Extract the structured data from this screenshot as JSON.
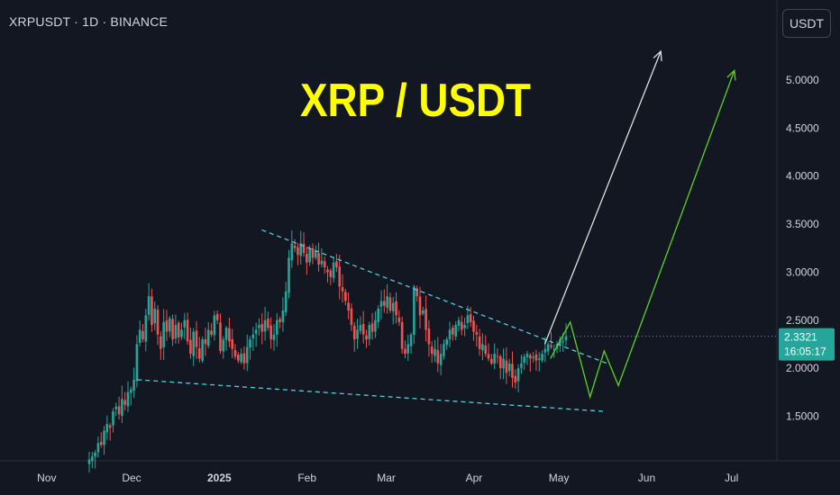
{
  "header": {
    "symbol": "XRPUSDT · 1D · BINANCE",
    "currency_button": "USDT"
  },
  "annotation": {
    "headline": "XRP / USDT",
    "color": "#ffff00"
  },
  "colors": {
    "background": "#131722",
    "up": "#26a69a",
    "down": "#ef5350",
    "trendline": "#4dd0e1",
    "arrow_white": "#e0e0e0",
    "arrow_green": "#5bd41f",
    "price_tag": "#26a69a"
  },
  "chart_data": {
    "type": "candlestick",
    "x_ticks": [
      "Nov",
      "Dec",
      "2025",
      "Feb",
      "Mar",
      "Apr",
      "May",
      "Jun",
      "Jul"
    ],
    "y_ticks": [
      "1.5000",
      "2.0000",
      "2.5000",
      "3.0000",
      "3.5000",
      "4.0000",
      "4.5000",
      "5.0000"
    ],
    "ylim": [
      1.05,
      5.55
    ],
    "last_price": "2.3321",
    "countdown": "16:05:17",
    "closes": [
      1.05,
      1.08,
      1.12,
      1.22,
      1.2,
      1.35,
      1.42,
      1.38,
      1.55,
      1.6,
      1.52,
      1.68,
      1.62,
      1.75,
      1.78,
      1.88,
      2.25,
      2.4,
      2.3,
      2.55,
      2.75,
      2.45,
      2.62,
      2.35,
      2.2,
      2.48,
      2.38,
      2.52,
      2.3,
      2.45,
      2.32,
      2.4,
      2.5,
      2.28,
      2.15,
      2.38,
      2.22,
      2.1,
      2.3,
      2.25,
      2.4,
      2.35,
      2.55,
      2.5,
      2.18,
      2.3,
      2.42,
      2.28,
      2.2,
      2.12,
      2.08,
      2.15,
      2.05,
      2.22,
      2.3,
      2.35,
      2.4,
      2.45,
      2.38,
      2.5,
      2.42,
      2.3,
      2.35,
      2.5,
      2.48,
      2.6,
      2.8,
      3.15,
      3.3,
      3.25,
      3.18,
      3.3,
      3.2,
      3.1,
      3.25,
      3.15,
      3.22,
      3.08,
      3.12,
      3.05,
      3.0,
      2.95,
      3.1,
      3.05,
      2.85,
      2.8,
      2.7,
      2.6,
      2.45,
      2.3,
      2.4,
      2.45,
      2.35,
      2.3,
      2.45,
      2.38,
      2.5,
      2.62,
      2.7,
      2.65,
      2.75,
      2.6,
      2.68,
      2.55,
      2.48,
      2.2,
      2.15,
      2.25,
      2.35,
      2.85,
      2.75,
      2.55,
      2.6,
      2.4,
      2.25,
      2.15,
      2.2,
      2.05,
      2.15,
      2.25,
      2.3,
      2.4,
      2.35,
      2.45,
      2.5,
      2.4,
      2.45,
      2.55,
      2.48,
      2.38,
      2.35,
      2.2,
      2.25,
      2.15,
      2.1,
      2.05,
      2.15,
      2.12,
      2.0,
      2.1,
      1.95,
      2.05,
      1.9,
      1.85,
      2.0,
      2.05,
      2.12,
      2.15,
      2.1,
      2.12,
      2.08,
      2.1,
      2.15,
      2.2,
      2.25,
      2.22,
      2.2,
      2.25,
      2.3,
      2.28,
      2.3321
    ],
    "series": [
      {
        "name": "",
        "kind": "descending-resistance",
        "points": [
          [
            "2025-01-16",
            3.44
          ],
          [
            "2025-05-18",
            2.05
          ]
        ]
      },
      {
        "name": "",
        "kind": "descending-support",
        "points": [
          [
            "2024-12-03",
            1.88
          ],
          [
            "2025-05-17",
            1.55
          ]
        ]
      },
      {
        "name": "",
        "kind": "projection-white",
        "points": [
          [
            "2025-04-26",
            2.25
          ],
          [
            "2025-06-06",
            5.3
          ]
        ]
      },
      {
        "name": "",
        "kind": "projection-green",
        "points": [
          [
            "2025-04-28",
            2.1
          ],
          [
            "2025-05-05",
            2.48
          ],
          [
            "2025-05-12",
            1.7
          ],
          [
            "2025-05-17",
            2.18
          ],
          [
            "2025-05-22",
            1.82
          ],
          [
            "2025-07-02",
            5.1
          ]
        ]
      }
    ]
  }
}
